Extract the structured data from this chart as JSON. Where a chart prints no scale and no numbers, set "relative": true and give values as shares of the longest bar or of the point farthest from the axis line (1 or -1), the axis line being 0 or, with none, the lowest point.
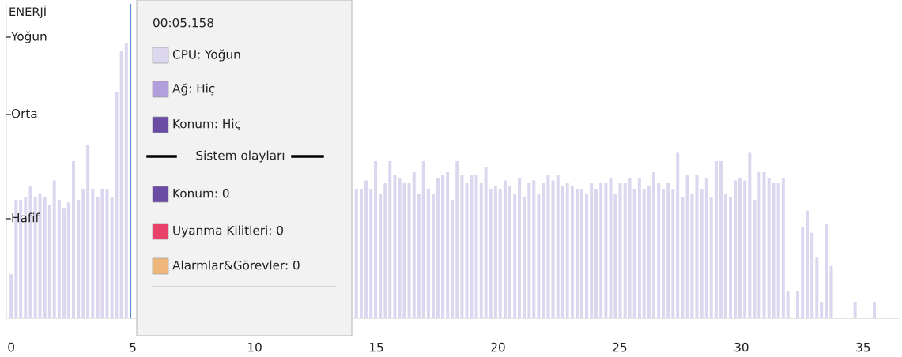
{
  "chart_data": {
    "type": "bar",
    "title": "ENERJİ",
    "x": [
      0,
      0.2,
      0.39,
      0.59,
      0.79,
      0.99,
      1.18,
      1.38,
      1.58,
      1.77,
      1.97,
      2.17,
      2.36,
      2.56,
      2.76,
      2.96,
      3.15,
      3.35,
      3.55,
      3.74,
      3.94,
      4.14,
      4.33,
      4.53,
      4.73,
      4.93,
      5.12,
      5.32,
      5.52,
      5.71,
      5.91,
      6.11,
      6.3,
      6.5,
      6.7,
      6.9,
      7.09,
      7.29,
      7.49,
      7.68,
      7.88,
      8.08,
      8.27,
      8.47,
      8.67,
      8.87,
      9.06,
      9.26,
      9.46,
      9.65,
      9.85,
      10.05,
      10.24,
      10.44,
      10.64,
      10.84,
      11.03,
      11.23,
      11.43,
      11.62,
      11.82,
      12.02,
      12.21,
      12.41,
      12.61,
      12.81,
      13.0,
      13.2,
      13.4,
      13.59,
      13.79,
      13.99,
      14.18,
      14.38,
      14.58,
      14.78,
      14.97,
      15.17,
      15.37,
      15.56,
      15.76,
      15.96,
      16.15,
      16.35,
      16.55,
      16.75,
      16.94,
      17.14,
      17.34,
      17.53,
      17.73,
      17.93,
      18.12,
      18.32,
      18.52,
      18.72,
      18.91,
      19.11,
      19.31,
      19.5,
      19.7,
      19.9,
      20.09,
      20.29,
      20.49,
      20.69,
      20.88,
      21.08,
      21.28,
      21.47,
      21.67,
      21.87,
      22.06,
      22.26,
      22.46,
      22.66,
      22.85,
      23.05,
      23.25,
      23.44,
      23.64,
      23.84,
      24.03,
      24.23,
      24.43,
      24.63,
      24.82,
      25.02,
      25.22,
      25.41,
      25.61,
      25.81,
      26.0,
      26.2,
      26.4,
      26.6,
      26.79,
      26.99,
      27.19,
      27.38,
      27.58,
      27.78,
      27.97,
      28.17,
      28.37,
      28.57,
      28.76,
      28.96,
      29.16,
      29.35,
      29.55,
      29.75,
      29.94,
      30.14,
      30.34,
      30.54,
      30.73,
      30.93,
      31.13,
      31.32,
      31.52,
      31.72,
      31.91,
      32.11,
      32.31,
      32.51,
      32.7,
      32.9,
      33.1,
      33.29,
      33.49,
      33.69,
      33.88,
      34.08,
      34.28,
      34.48,
      34.67,
      34.87,
      35.07,
      35.26,
      35.46
    ],
    "relative": true,
    "series": [
      {
        "color": "#dcd6ef",
        "values": [
          0.16,
          0.43,
          0.43,
          0.44,
          0.48,
          0.44,
          0.45,
          0.44,
          0.41,
          0.5,
          0.43,
          0.4,
          0.42,
          0.57,
          0.43,
          0.47,
          0.63,
          0.47,
          0.44,
          0.47,
          0.47,
          0.44,
          0.82,
          0.97,
          1,
          null,
          null,
          null,
          null,
          null,
          null,
          null,
          null,
          null,
          null,
          null,
          null,
          null,
          null,
          null,
          null,
          null,
          null,
          null,
          null,
          null,
          null,
          null,
          null,
          null,
          null,
          null,
          null,
          null,
          null,
          null,
          null,
          null,
          null,
          null,
          null,
          null,
          null,
          null,
          null,
          null,
          null,
          null,
          null,
          null,
          null,
          null,
          0.47,
          0.47,
          0.5,
          0.47,
          0.57,
          0.45,
          0.49,
          0.57,
          0.52,
          0.51,
          0.49,
          0.49,
          0.53,
          0.45,
          0.57,
          0.47,
          0.45,
          0.51,
          0.52,
          0.53,
          0.43,
          0.57,
          0.52,
          0.49,
          0.52,
          0.52,
          0.49,
          0.55,
          0.47,
          0.48,
          0.47,
          0.5,
          0.48,
          0.45,
          0.51,
          0.44,
          0.49,
          0.5,
          0.45,
          0.49,
          0.52,
          0.5,
          0.52,
          0.48,
          0.49,
          0.48,
          0.47,
          0.47,
          0.45,
          0.49,
          0.47,
          0.49,
          0.49,
          0.51,
          0.45,
          0.49,
          0.49,
          0.51,
          0.47,
          0.51,
          0.47,
          0.48,
          0.53,
          0.49,
          0.47,
          0.49,
          0.47,
          0.6,
          0.44,
          0.52,
          0.45,
          0.52,
          0.47,
          0.51,
          0.44,
          0.57,
          0.57,
          0.45,
          0.44,
          0.5,
          0.51,
          0.5,
          0.6,
          0.43,
          0.53,
          0.53,
          0.51,
          0.49,
          0.49,
          0.51,
          0.1,
          0,
          0.1,
          0.33,
          0.39,
          0.31,
          0.22,
          0.06,
          0.34,
          0.19,
          0,
          0,
          0,
          0,
          0.06,
          0,
          0,
          0,
          0.06
        ]
      }
    ],
    "xlim": [
      -0.2,
      36.5
    ],
    "xticks": [
      0,
      5,
      10,
      15,
      20,
      25,
      30,
      35
    ],
    "grid": false,
    "legend": false,
    "ref_lines": [
      {
        "axis": "x",
        "value": 4.9,
        "color": "#5b8bd9"
      }
    ],
    "annotations": [
      "Yoğun",
      "Orta",
      "Hafif",
      "00:05.158",
      "CPU: Yoğun",
      "Ağ: Hiç",
      "Konum: Hiç",
      "Sistem olayları",
      "Konum: 0",
      "Uyanma Kilitleri: 0",
      "Alarmlar&Görevler: 0"
    ]
  }
}
